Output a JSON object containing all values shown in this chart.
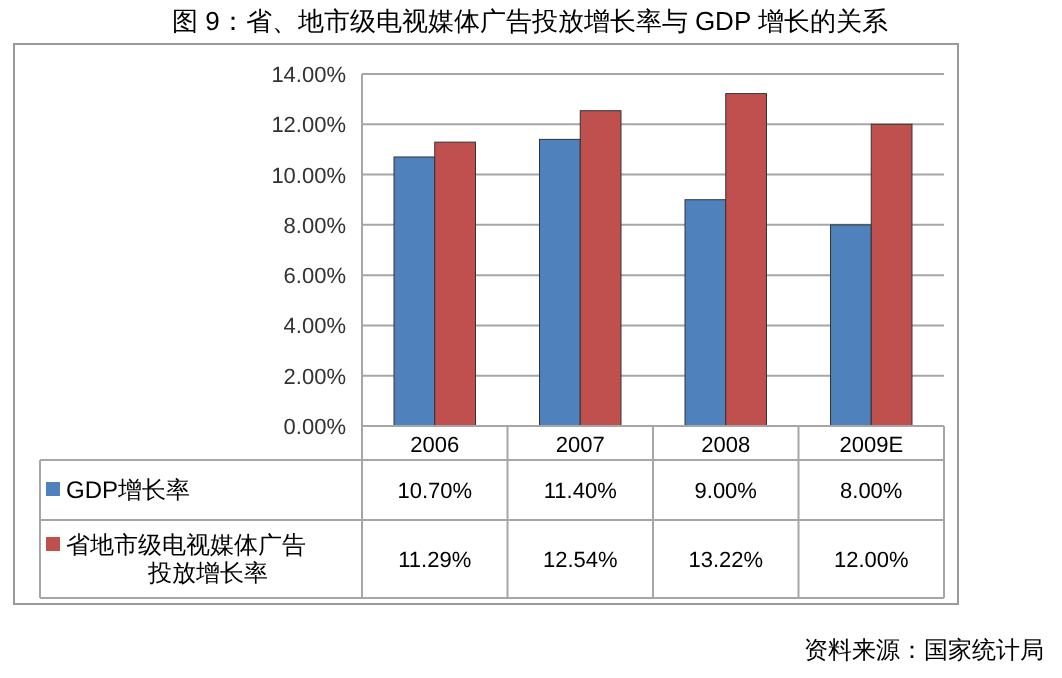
{
  "chart_data": {
    "type": "bar",
    "title": "图 9：省、地市级电视媒体广告投放增长率与 GDP 增长的关系",
    "categories": [
      "2006",
      "2007",
      "2008",
      "2009E"
    ],
    "series": [
      {
        "name": "GDP增长率",
        "color": "#4f81bd",
        "values": [
          10.7,
          11.4,
          9.0,
          8.0
        ],
        "value_labels": [
          "10.70%",
          "11.40%",
          "9.00%",
          "8.00%"
        ]
      },
      {
        "name": "省地市级电视媒体广告投放增长率",
        "color": "#c0504d",
        "values": [
          11.29,
          12.54,
          13.22,
          12.0
        ],
        "value_labels": [
          "11.29%",
          "12.54%",
          "13.22%",
          "12.00%"
        ]
      }
    ],
    "ylim": [
      0,
      14
    ],
    "yticks": [
      {
        "value": 0,
        "label": "0.00%"
      },
      {
        "value": 2,
        "label": "2.00%"
      },
      {
        "value": 4,
        "label": "4.00%"
      },
      {
        "value": 6,
        "label": "6.00%"
      },
      {
        "value": 8,
        "label": "8.00%"
      },
      {
        "value": 10,
        "label": "10.00%"
      },
      {
        "value": 12,
        "label": "12.00%"
      },
      {
        "value": 14,
        "label": "14.00%"
      }
    ],
    "grid": "y",
    "legend": "bottom",
    "annotations": [
      "资料来源：国家统计局"
    ]
  }
}
